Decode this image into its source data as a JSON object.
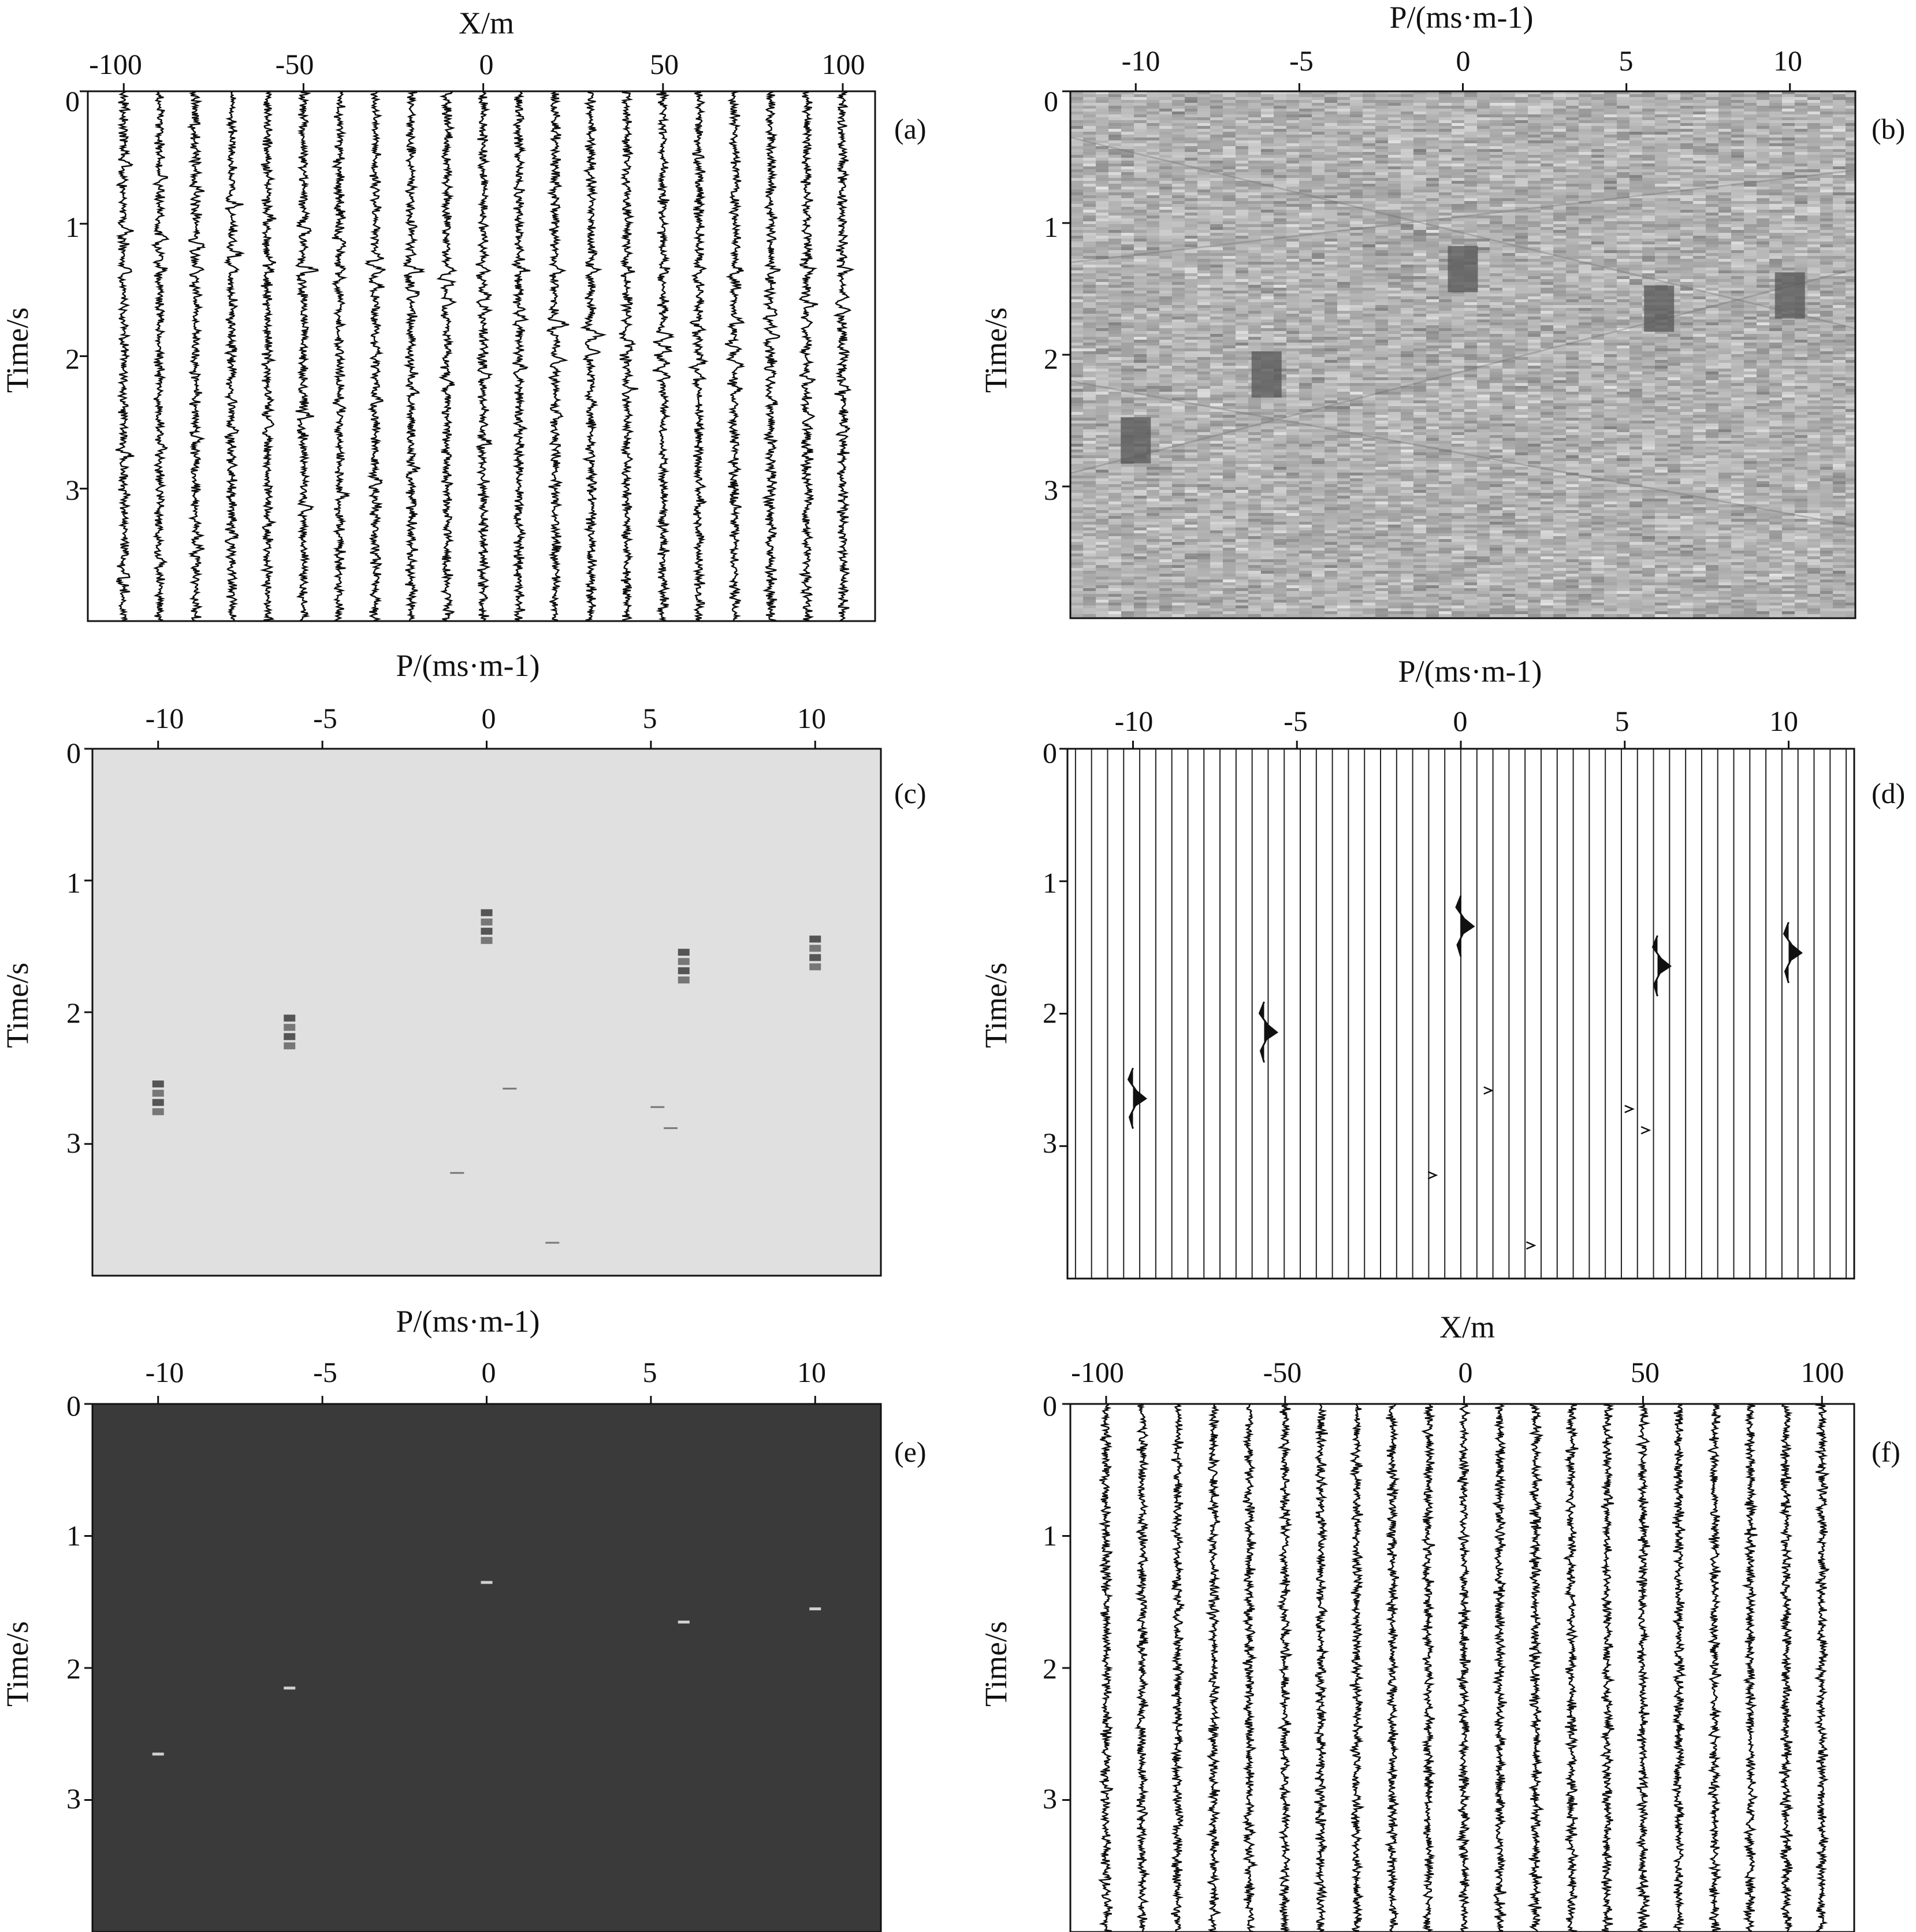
{
  "chart_data": [
    {
      "id": "a",
      "type": "seismic_wiggle",
      "panel_label": "(a)",
      "xlabel": "X/m",
      "ylabel": "Time/s",
      "xlim": [
        -110,
        109
      ],
      "ylim": [
        0,
        4
      ],
      "x_ticks": [
        -100,
        -50,
        0,
        50,
        100
      ],
      "x_tick_labels": [
        "-100",
        "-50",
        "0",
        "50",
        "100"
      ],
      "y_ticks": [
        0,
        1,
        2,
        3
      ],
      "y_tick_labels": [
        "0",
        "1",
        "2",
        "3"
      ],
      "trace_offsets_m": [
        -100,
        -90,
        -80,
        -70,
        -60,
        -50,
        -40,
        -30,
        -20,
        -10,
        0,
        10,
        20,
        30,
        40,
        50,
        60,
        70,
        80,
        90,
        100
      ],
      "noise": "high",
      "events": [
        {
          "p": -10,
          "t": 2.65
        },
        {
          "p": -6,
          "t": 2.15
        },
        {
          "p": 0,
          "t": 1.35
        },
        {
          "p": 6,
          "t": 1.65
        },
        {
          "p": 10,
          "t": 1.55
        }
      ]
    },
    {
      "id": "b",
      "type": "heatmap",
      "panel_label": "(b)",
      "xlabel": "P/(ms·m-1)",
      "ylabel": "Time/s",
      "xlim": [
        -12,
        12
      ],
      "ylim": [
        0,
        4
      ],
      "x_ticks": [
        -10,
        -5,
        0,
        5,
        10
      ],
      "x_tick_labels": [
        "-10",
        "-5",
        "0",
        "5",
        "10"
      ],
      "y_ticks": [
        0,
        1,
        2,
        3
      ],
      "y_tick_labels": [
        "0",
        "1",
        "2",
        "3"
      ],
      "background": "noisy-gray",
      "events": [
        {
          "p": -10,
          "t": 2.65
        },
        {
          "p": -6,
          "t": 2.15
        },
        {
          "p": 0,
          "t": 1.35
        },
        {
          "p": 6,
          "t": 1.65
        },
        {
          "p": 10,
          "t": 1.55
        }
      ]
    },
    {
      "id": "c",
      "type": "heatmap",
      "panel_label": "(c)",
      "xlabel": "P/(ms·m-1)",
      "ylabel": "Time/s",
      "xlim": [
        -12,
        12
      ],
      "ylim": [
        0,
        4
      ],
      "x_ticks": [
        -10,
        -5,
        0,
        5,
        10
      ],
      "x_tick_labels": [
        "-10",
        "-5",
        "0",
        "5",
        "10"
      ],
      "y_ticks": [
        0,
        1,
        2,
        3
      ],
      "y_tick_labels": [
        "0",
        "1",
        "2",
        "3"
      ],
      "background": "light-gray",
      "events": [
        {
          "p": -10,
          "t": 2.65
        },
        {
          "p": -6,
          "t": 2.15
        },
        {
          "p": 0,
          "t": 1.35
        },
        {
          "p": 6,
          "t": 1.65
        },
        {
          "p": 10,
          "t": 1.55
        }
      ],
      "artifacts": [
        {
          "p": 0.7,
          "t": 2.58
        },
        {
          "p": 5.2,
          "t": 2.72
        },
        {
          "p": 5.6,
          "t": 2.88
        },
        {
          "p": -0.9,
          "t": 3.22
        },
        {
          "p": 2.0,
          "t": 3.75
        }
      ]
    },
    {
      "id": "d",
      "type": "seismic_wiggle",
      "panel_label": "(d)",
      "xlabel": "P/(ms·m-1)",
      "ylabel": "Time/s",
      "xlim": [
        -12,
        12
      ],
      "ylim": [
        0,
        4
      ],
      "x_ticks": [
        -10,
        -5,
        0,
        5,
        10
      ],
      "x_tick_labels": [
        "-10",
        "-5",
        "0",
        "5",
        "10"
      ],
      "y_ticks": [
        0,
        1,
        2,
        3
      ],
      "y_tick_labels": [
        "0",
        "1",
        "2",
        "3"
      ],
      "trace_count": 49,
      "events": [
        {
          "p": -10,
          "t": 2.65
        },
        {
          "p": -6,
          "t": 2.15
        },
        {
          "p": 0,
          "t": 1.35
        },
        {
          "p": 6,
          "t": 1.65
        },
        {
          "p": 10,
          "t": 1.55
        }
      ],
      "artifacts": [
        {
          "p": 0.7,
          "t": 2.58
        },
        {
          "p": 5.0,
          "t": 2.72
        },
        {
          "p": 5.5,
          "t": 2.88
        },
        {
          "p": -1.0,
          "t": 3.22
        },
        {
          "p": 2.0,
          "t": 3.75
        }
      ]
    },
    {
      "id": "e",
      "type": "heatmap",
      "panel_label": "(e)",
      "xlabel": "P/(ms·m-1)",
      "ylabel": "Time/s",
      "xlim": [
        -12,
        12
      ],
      "ylim": [
        0,
        4
      ],
      "x_ticks": [
        -10,
        -5,
        0,
        5,
        10
      ],
      "x_tick_labels": [
        "-10",
        "-5",
        "0",
        "5",
        "10"
      ],
      "y_ticks": [
        0,
        1,
        2,
        3
      ],
      "y_tick_labels": [
        "0",
        "1",
        "2",
        "3"
      ],
      "background": "dark-gray",
      "events": [
        {
          "p": -10,
          "t": 2.65
        },
        {
          "p": -6,
          "t": 2.15
        },
        {
          "p": 0,
          "t": 1.35
        },
        {
          "p": 6,
          "t": 1.65
        },
        {
          "p": 10,
          "t": 1.55
        }
      ]
    },
    {
      "id": "f",
      "type": "seismic_wiggle",
      "panel_label": "(f)",
      "xlabel": "X/m",
      "ylabel": "Time/s",
      "xlim": [
        -110,
        109
      ],
      "ylim": [
        0,
        4
      ],
      "x_ticks": [
        -100,
        -50,
        0,
        50,
        100
      ],
      "x_tick_labels": [
        "-100",
        "-50",
        "0",
        "50",
        "100"
      ],
      "y_ticks": [
        0,
        1,
        2,
        3
      ],
      "y_tick_labels": [
        "0",
        "1",
        "2",
        "3"
      ],
      "trace_offsets_m": [
        -100,
        -90,
        -80,
        -70,
        -60,
        -50,
        -40,
        -30,
        -20,
        -10,
        0,
        10,
        20,
        30,
        40,
        50,
        60,
        70,
        80,
        90,
        100
      ],
      "noise": "high",
      "events": []
    }
  ],
  "colors": {
    "axis": "#111111",
    "wiggle": "#0a0a0a",
    "panel_b_base": "#b4b4b4",
    "panel_c_bg": "#e0e0e0",
    "panel_c_marks": "#555555",
    "panel_e_bg": "#3a3a3a",
    "panel_e_marks": "#d0d0d0"
  }
}
